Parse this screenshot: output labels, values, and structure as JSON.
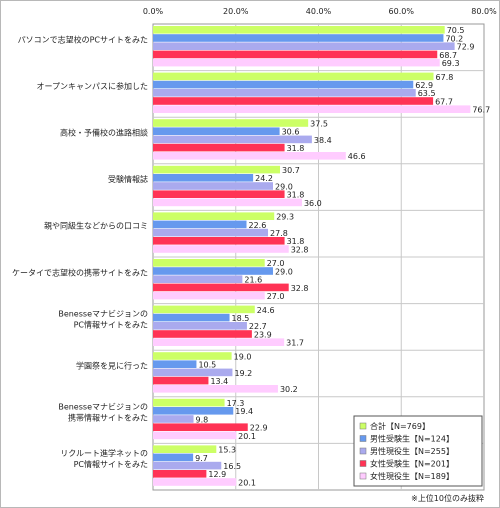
{
  "chart_data": {
    "type": "bar",
    "orientation": "horizontal",
    "xlim": [
      0,
      80
    ],
    "x_ticks": [
      "0.0%",
      "20.0%",
      "40.0%",
      "60.0%",
      "80.0%"
    ],
    "x_tick_values": [
      0,
      20,
      40,
      60,
      80
    ],
    "grid": true,
    "legend_position": "bottom-right",
    "categories": [
      [
        "パソコンで志望校のPCサイトをみた"
      ],
      [
        "オープンキャンパスに参加した"
      ],
      [
        "高校・予備校の進路相談"
      ],
      [
        "受験情報誌"
      ],
      [
        "親や同級生などからの口コミ"
      ],
      [
        "ケータイで志望校の携帯サイトをみた"
      ],
      [
        "Benesseマナビジョンの",
        "PC情報サイトをみた"
      ],
      [
        "学園祭を見に行った"
      ],
      [
        "Benesseマナビジョンの",
        "携帯情報サイトをみた"
      ],
      [
        "リクルート進学ネットの",
        "PC情報サイトをみた"
      ]
    ],
    "series": [
      {
        "name": "合計【N=769】",
        "color": "#ccff66",
        "values": [
          70.5,
          67.8,
          37.5,
          30.7,
          29.3,
          27.0,
          24.6,
          19.0,
          17.3,
          15.3
        ]
      },
      {
        "name": "男性受験生【N=124】",
        "color": "#6699ee",
        "values": [
          70.2,
          62.9,
          30.6,
          24.2,
          22.6,
          29.0,
          18.5,
          10.5,
          19.4,
          9.7
        ]
      },
      {
        "name": "男性現役生【N=255】",
        "color": "#aaaaee",
        "values": [
          72.9,
          63.5,
          38.4,
          29.0,
          27.8,
          21.6,
          22.7,
          19.2,
          9.8,
          16.5
        ]
      },
      {
        "name": "女性受験生【N=201】",
        "color": "#ff3355",
        "values": [
          68.7,
          67.7,
          31.8,
          31.8,
          31.8,
          32.8,
          23.9,
          13.4,
          22.9,
          12.9
        ]
      },
      {
        "name": "女性現役生【N=189】",
        "color": "#ffccff",
        "values": [
          69.3,
          76.7,
          46.6,
          36.0,
          32.8,
          27.0,
          31.7,
          30.2,
          20.1,
          20.1
        ]
      }
    ],
    "note": "※上位10位のみ抜粋"
  }
}
